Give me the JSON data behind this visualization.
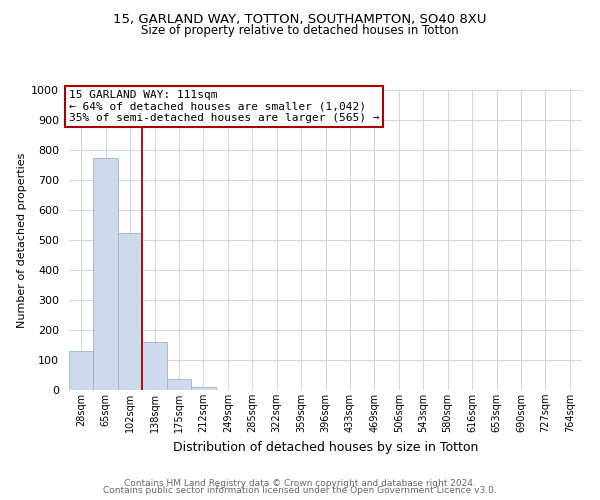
{
  "title_line1": "15, GARLAND WAY, TOTTON, SOUTHAMPTON, SO40 8XU",
  "title_line2": "Size of property relative to detached houses in Totton",
  "xlabel": "Distribution of detached houses by size in Totton",
  "ylabel": "Number of detached properties",
  "footnote_line1": "Contains HM Land Registry data © Crown copyright and database right 2024.",
  "footnote_line2": "Contains public sector information licensed under the Open Government Licence v3.0.",
  "bin_labels": [
    "28sqm",
    "65sqm",
    "102sqm",
    "138sqm",
    "175sqm",
    "212sqm",
    "249sqm",
    "285sqm",
    "322sqm",
    "359sqm",
    "396sqm",
    "433sqm",
    "469sqm",
    "506sqm",
    "543sqm",
    "580sqm",
    "616sqm",
    "653sqm",
    "690sqm",
    "727sqm",
    "764sqm"
  ],
  "bar_values": [
    130,
    775,
    525,
    160,
    37,
    10,
    0,
    0,
    0,
    0,
    0,
    0,
    0,
    0,
    0,
    0,
    0,
    0,
    0,
    0,
    0
  ],
  "bar_color": "#ccdaeb",
  "bar_edge_color": "#9ab4cc",
  "property_line_color": "#aa0000",
  "annotation_text_line1": "15 GARLAND WAY: 111sqm",
  "annotation_text_line2": "← 64% of detached houses are smaller (1,042)",
  "annotation_text_line3": "35% of semi-detached houses are larger (565) →",
  "annotation_box_color": "#ffffff",
  "annotation_box_edge_color": "#aa0000",
  "ylim": [
    0,
    1000
  ],
  "yticks": [
    0,
    100,
    200,
    300,
    400,
    500,
    600,
    700,
    800,
    900,
    1000
  ],
  "background_color": "#ffffff",
  "grid_color": "#ccd5e5",
  "title1_fontsize": 9.5,
  "title2_fontsize": 8.5,
  "ylabel_fontsize": 8,
  "xlabel_fontsize": 9,
  "footnote_fontsize": 6.5
}
